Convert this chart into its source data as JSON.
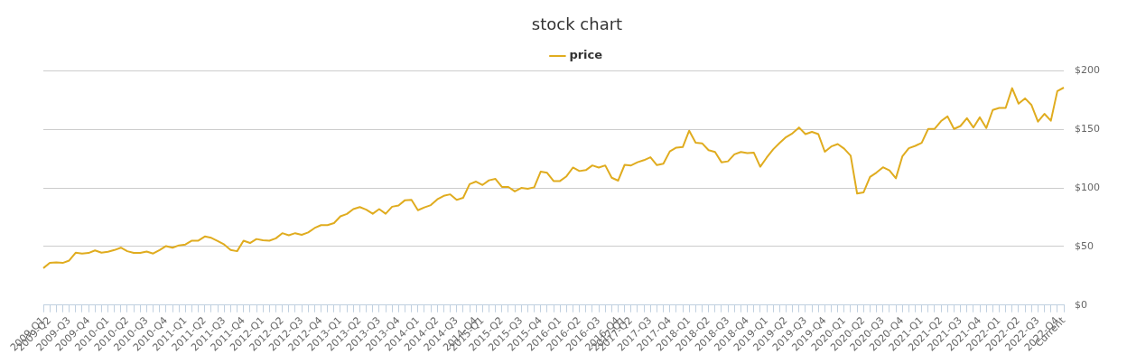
{
  "chart_data": {
    "type": "line",
    "title": "stock chart",
    "categories": [
      "2009-Q1",
      "2009-Q2",
      null,
      null,
      "2009-Q3",
      null,
      null,
      "2009-Q4",
      null,
      null,
      "2010-Q1",
      null,
      null,
      "2010-Q2",
      null,
      null,
      "2010-Q3",
      null,
      null,
      "2010-Q4",
      null,
      null,
      "2011-Q1",
      null,
      null,
      "2011-Q2",
      null,
      null,
      "2011-Q3",
      null,
      null,
      "2011-Q4",
      null,
      null,
      "2012-Q1",
      null,
      null,
      "2012-Q2",
      null,
      null,
      "2012-Q3",
      null,
      null,
      "2012-Q4",
      null,
      null,
      "2013-Q1",
      null,
      null,
      "2013-Q2",
      null,
      null,
      "2013-Q3",
      null,
      null,
      "2013-Q4",
      null,
      null,
      "2014-Q1",
      null,
      null,
      "2014-Q2",
      null,
      null,
      "2014-Q3",
      null,
      null,
      "2014-Q4",
      "2015-Q1",
      null,
      null,
      "2015-Q2",
      null,
      null,
      "2015-Q3",
      null,
      null,
      "2015-Q4",
      null,
      null,
      "2016-Q1",
      null,
      null,
      "2016-Q2",
      null,
      null,
      "2016-Q3",
      null,
      null,
      "2016-Q4",
      "2017-Q1",
      "2017-Q2",
      null,
      null,
      "2017-Q3",
      null,
      null,
      "2017-Q4",
      null,
      null,
      "2018-Q1",
      null,
      null,
      "2018-Q2",
      null,
      null,
      "2018-Q3",
      null,
      null,
      "2018-Q4",
      null,
      null,
      "2019-Q1",
      null,
      null,
      "2019-Q2",
      null,
      null,
      "2019-Q3",
      null,
      null,
      "2019-Q4",
      null,
      null,
      "2020-Q1",
      null,
      null,
      "2020-Q2",
      null,
      null,
      "2020-Q3",
      null,
      null,
      "2020-Q4",
      null,
      null,
      "2021-Q1",
      null,
      null,
      "2021-Q2",
      null,
      null,
      "2021-Q3",
      null,
      null,
      "2021-Q4",
      null,
      null,
      "2022-Q1",
      null,
      null,
      "2022-Q2",
      null,
      null,
      "2022-Q3",
      null,
      null,
      "2022-Q4",
      "Current"
    ],
    "series": [
      {
        "name": "price",
        "color": "#e0ac1f",
        "values": [
          31.5,
          36,
          36.5,
          36,
          38,
          44.7,
          44,
          44.5,
          46.7,
          44.7,
          45.5,
          47,
          49,
          46,
          44.5,
          44.5,
          45.7,
          44,
          47,
          50.4,
          49,
          51,
          51.7,
          55,
          55,
          58.6,
          57.4,
          54.7,
          51.7,
          47,
          46,
          55,
          53,
          56.4,
          55.4,
          55,
          57,
          61.4,
          59.6,
          61.4,
          60,
          62,
          65.8,
          68.3,
          68.3,
          70,
          75.8,
          77.8,
          82,
          83.7,
          81.5,
          78,
          82,
          78,
          84,
          85,
          89.6,
          89.9,
          81,
          83.4,
          85.4,
          90.3,
          93.3,
          94.6,
          89.9,
          91.6,
          103.3,
          105.5,
          102.6,
          106.6,
          107.8,
          100.9,
          100.9,
          97.1,
          100.1,
          99.4,
          100.6,
          114,
          113,
          106,
          106,
          110,
          117.5,
          114.5,
          115.3,
          119.3,
          117.5,
          119.3,
          108.8,
          106.3,
          119.8,
          119.3,
          122,
          123.8,
          126.3,
          119.6,
          120.8,
          131.3,
          134.5,
          135,
          149,
          138.7,
          138.2,
          132.3,
          130.8,
          122,
          122.8,
          128.8,
          130.8,
          129.8,
          130.3,
          118.2,
          126,
          133,
          138.5,
          143.5,
          146.8,
          151.7,
          146,
          148,
          146,
          131,
          135.5,
          137.6,
          133.6,
          127.6,
          95.3,
          96.3,
          109.5,
          113.2,
          117.7,
          115,
          108.3,
          127,
          134,
          136,
          138.6,
          150.5,
          150.5,
          157.2,
          161.2,
          150.5,
          153,
          159.7,
          151.7,
          160.4,
          151.2,
          166.7,
          168.4,
          168.4,
          185.3,
          172.1,
          176.6,
          170.9,
          156.7,
          163.4,
          157.5,
          182.8,
          185.8
        ]
      }
    ],
    "ylim": [
      0,
      200
    ],
    "yticks": [
      {
        "value": 0,
        "label": "$0"
      },
      {
        "value": 50,
        "label": "$50"
      },
      {
        "value": 100,
        "label": "$100"
      },
      {
        "value": 150,
        "label": "$150"
      },
      {
        "value": 200,
        "label": "$200"
      }
    ],
    "grid": "y",
    "legend": "top"
  }
}
